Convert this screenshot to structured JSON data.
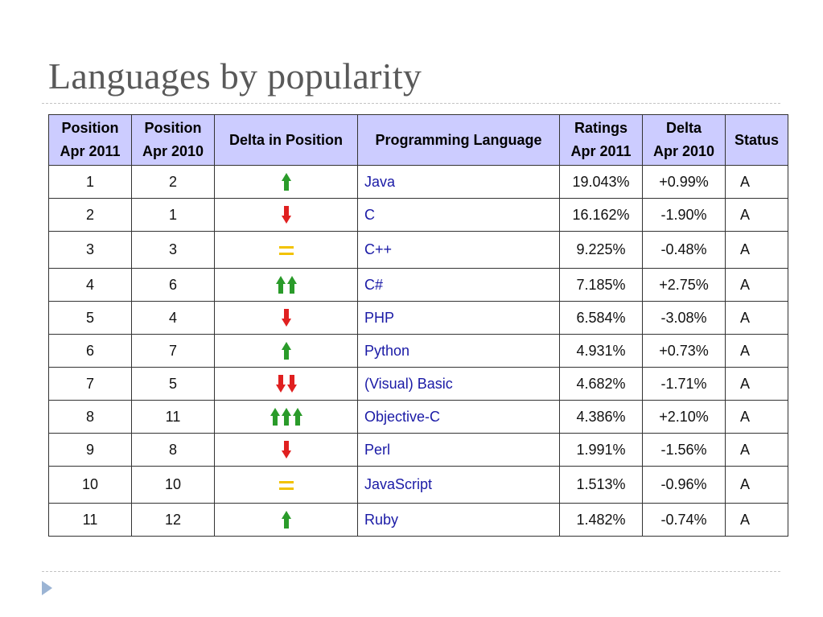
{
  "slide": {
    "title": "Languages by popularity"
  },
  "table": {
    "headers": {
      "pos_2011_line1": "Position",
      "pos_2011_line2": "Apr 2011",
      "pos_2010_line1": "Position",
      "pos_2010_line2": "Apr 2010",
      "delta_position": "Delta in Position",
      "language": "Programming Language",
      "ratings_line1": "Ratings",
      "ratings_line2": "Apr 2011",
      "delta_line1": "Delta",
      "delta_line2": "Apr 2010",
      "status": "Status"
    },
    "rows": [
      {
        "pos2011": "1",
        "pos2010": "2",
        "delta_icon": "up-arrow",
        "delta_count": 1,
        "language": "Java",
        "rating": "19.043%",
        "delta": "+0.99%",
        "status": "A"
      },
      {
        "pos2011": "2",
        "pos2010": "1",
        "delta_icon": "down-arrow",
        "delta_count": 1,
        "language": "C",
        "rating": "16.162%",
        "delta": "-1.90%",
        "status": "A"
      },
      {
        "pos2011": "3",
        "pos2010": "3",
        "delta_icon": "equal-sign",
        "delta_count": 1,
        "language": "C++",
        "rating": "9.225%",
        "delta": "-0.48%",
        "status": "A"
      },
      {
        "pos2011": "4",
        "pos2010": "6",
        "delta_icon": "up-arrow",
        "delta_count": 2,
        "language": "C#",
        "rating": "7.185%",
        "delta": "+2.75%",
        "status": "A"
      },
      {
        "pos2011": "5",
        "pos2010": "4",
        "delta_icon": "down-arrow",
        "delta_count": 1,
        "language": "PHP",
        "rating": "6.584%",
        "delta": "-3.08%",
        "status": "A"
      },
      {
        "pos2011": "6",
        "pos2010": "7",
        "delta_icon": "up-arrow",
        "delta_count": 1,
        "language": "Python",
        "rating": "4.931%",
        "delta": "+0.73%",
        "status": "A"
      },
      {
        "pos2011": "7",
        "pos2010": "5",
        "delta_icon": "down-arrow",
        "delta_count": 2,
        "language": "(Visual) Basic",
        "rating": "4.682%",
        "delta": "-1.71%",
        "status": "A"
      },
      {
        "pos2011": "8",
        "pos2010": "11",
        "delta_icon": "up-arrow",
        "delta_count": 3,
        "language": "Objective-C",
        "rating": "4.386%",
        "delta": "+2.10%",
        "status": "A"
      },
      {
        "pos2011": "9",
        "pos2010": "8",
        "delta_icon": "down-arrow",
        "delta_count": 1,
        "language": "Perl",
        "rating": "1.991%",
        "delta": "-1.56%",
        "status": "A"
      },
      {
        "pos2011": "10",
        "pos2010": "10",
        "delta_icon": "equal-sign",
        "delta_count": 1,
        "language": "JavaScript",
        "rating": "1.513%",
        "delta": "-0.96%",
        "status": "A"
      },
      {
        "pos2011": "11",
        "pos2010": "12",
        "delta_icon": "up-arrow",
        "delta_count": 1,
        "language": "Ruby",
        "rating": "1.482%",
        "delta": "-0.74%",
        "status": "A"
      }
    ]
  },
  "colors": {
    "header_bg": "#ccccff",
    "link_text": "#1a1aa6",
    "up_arrow": "#2a9b2a",
    "down_arrow": "#e02020",
    "equal_sign": "#f2c200",
    "title_text": "#595959",
    "bullet": "#9bb4d4"
  }
}
